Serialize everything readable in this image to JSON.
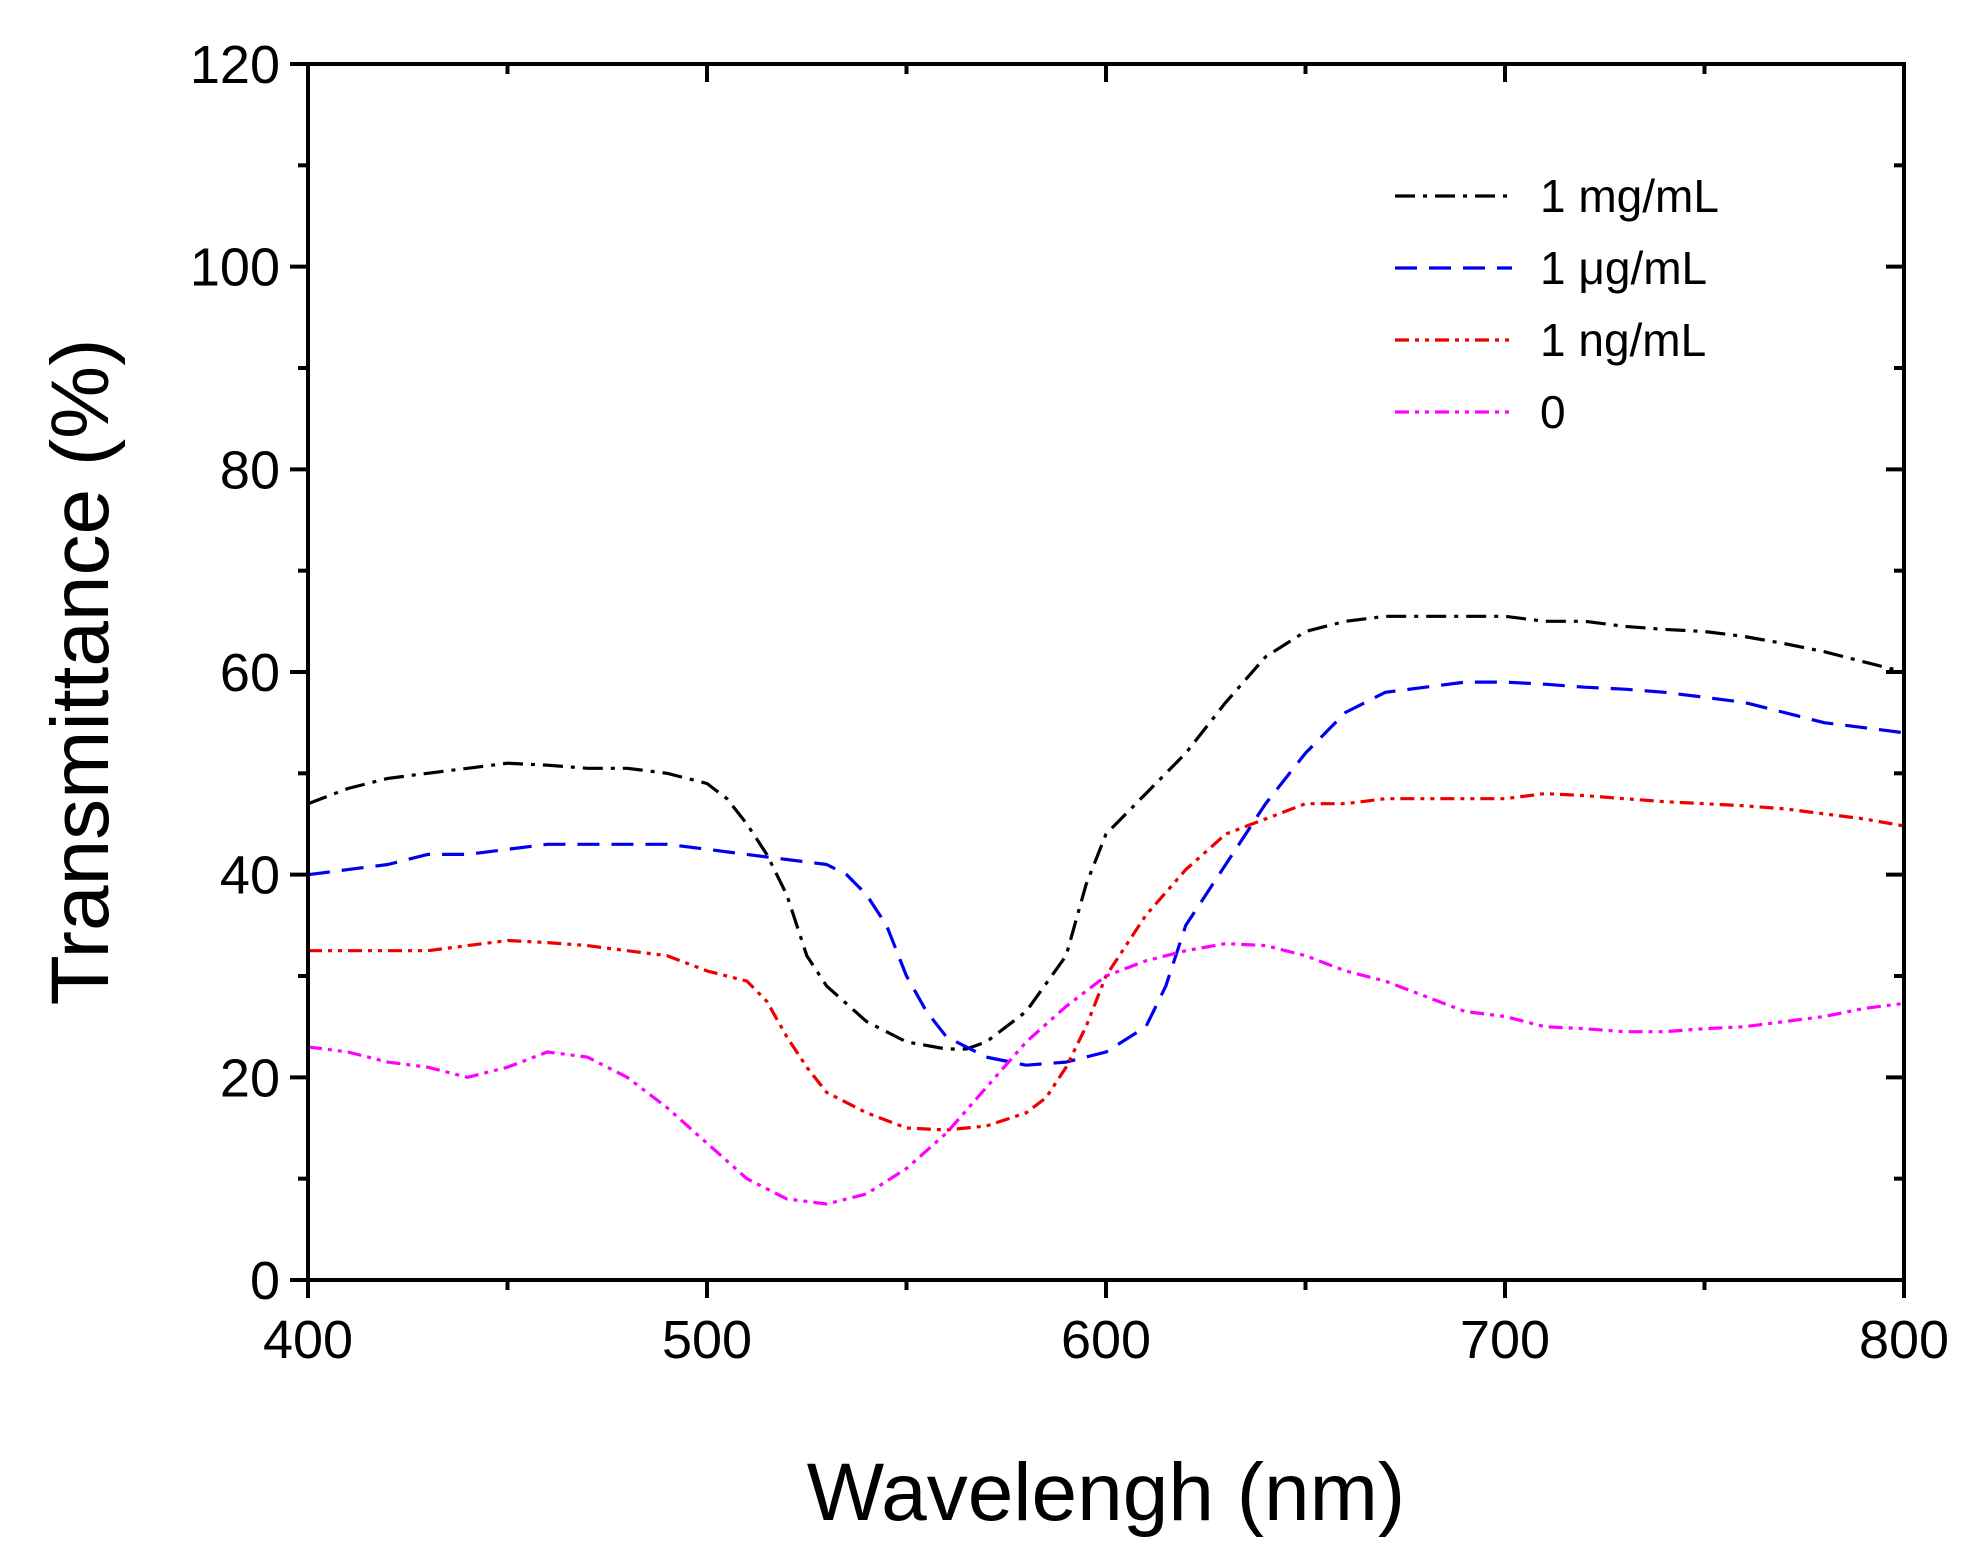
{
  "chart_data": {
    "type": "line",
    "title": "",
    "xlabel": "Wavelengh (nm)",
    "ylabel": "Transmittance (%)",
    "xlim": [
      400,
      800
    ],
    "ylim": [
      0,
      120
    ],
    "x_ticks": [
      400,
      500,
      600,
      700,
      800
    ],
    "y_ticks": [
      0,
      20,
      40,
      60,
      80,
      100,
      120
    ],
    "x_tick_labels": [
      "400",
      "500",
      "600",
      "700",
      "800"
    ],
    "y_tick_labels": [
      "0",
      "20",
      "40",
      "60",
      "80",
      "100",
      "120"
    ],
    "legend_position": "top-right",
    "grid": false,
    "series": [
      {
        "name": "1 mg/mL",
        "legend_label": "1 mg/mL",
        "color": "#000000",
        "dash": "dash-dot",
        "x": [
          400,
          410,
          420,
          430,
          440,
          450,
          460,
          470,
          480,
          490,
          500,
          505,
          510,
          515,
          520,
          525,
          530,
          540,
          550,
          560,
          565,
          570,
          580,
          590,
          595,
          600,
          605,
          610,
          620,
          630,
          640,
          650,
          660,
          670,
          680,
          690,
          700,
          710,
          720,
          730,
          740,
          750,
          760,
          770,
          780,
          790,
          800
        ],
        "y": [
          47,
          48.5,
          49.5,
          50,
          50.5,
          51,
          50.8,
          50.5,
          50.5,
          50,
          49,
          47.5,
          45,
          42,
          38,
          32,
          29,
          25.5,
          23.5,
          22.8,
          22.8,
          23.5,
          26.5,
          32,
          39,
          44,
          46,
          48,
          52,
          57,
          61.5,
          64,
          65,
          65.5,
          65.5,
          65.5,
          65.5,
          65,
          65,
          64.5,
          64.2,
          64,
          63.5,
          62.8,
          62,
          61,
          60
        ]
      },
      {
        "name": "1 µg/mL",
        "legend_label": "1 μg/mL",
        "color": "#0000ee",
        "dash": "dash",
        "x": [
          400,
          410,
          420,
          430,
          440,
          450,
          460,
          470,
          480,
          490,
          500,
          510,
          520,
          530,
          535,
          540,
          545,
          550,
          555,
          560,
          570,
          580,
          590,
          600,
          610,
          615,
          620,
          630,
          640,
          650,
          660,
          670,
          680,
          690,
          700,
          710,
          720,
          730,
          740,
          750,
          760,
          770,
          780,
          790,
          800
        ],
        "y": [
          40,
          40.5,
          41,
          42,
          42,
          42.5,
          43,
          43,
          43,
          43,
          42.5,
          42,
          41.5,
          41,
          40,
          38,
          35,
          30,
          26.5,
          24,
          22,
          21.2,
          21.5,
          22.5,
          25,
          29,
          35,
          41,
          47,
          52,
          56,
          58,
          58.5,
          59,
          59,
          58.8,
          58.5,
          58.3,
          58,
          57.5,
          57,
          56,
          55,
          54.5,
          54
        ]
      },
      {
        "name": "1 ng/mL",
        "legend_label": "1 ng/mL",
        "color": "#ee0000",
        "dash": "dash-dot-dot",
        "x": [
          400,
          410,
          420,
          430,
          440,
          450,
          460,
          470,
          480,
          490,
          500,
          510,
          515,
          520,
          525,
          530,
          540,
          550,
          560,
          565,
          570,
          580,
          585,
          590,
          595,
          600,
          610,
          620,
          630,
          640,
          650,
          660,
          670,
          680,
          690,
          700,
          710,
          720,
          730,
          740,
          750,
          760,
          770,
          780,
          790,
          800
        ],
        "y": [
          32.5,
          32.5,
          32.5,
          32.5,
          33,
          33.5,
          33.3,
          33,
          32.5,
          32,
          30.5,
          29.5,
          27.5,
          24,
          21,
          18.5,
          16.5,
          15,
          14.8,
          15,
          15.2,
          16.5,
          18,
          21,
          25,
          30,
          36,
          40.5,
          44,
          45.5,
          47,
          47,
          47.5,
          47.5,
          47.5,
          47.5,
          48,
          47.8,
          47.5,
          47.2,
          47,
          46.8,
          46.5,
          46,
          45.5,
          44.8
        ]
      },
      {
        "name": "0",
        "legend_label": "0",
        "color": "#ff00ff",
        "dash": "dash-dot-dot",
        "x": [
          400,
          410,
          420,
          430,
          440,
          450,
          460,
          470,
          480,
          490,
          500,
          510,
          520,
          530,
          540,
          550,
          560,
          570,
          580,
          590,
          600,
          610,
          620,
          630,
          640,
          650,
          660,
          670,
          680,
          690,
          700,
          710,
          720,
          730,
          740,
          750,
          760,
          770,
          780,
          790,
          800
        ],
        "y": [
          23,
          22.5,
          21.5,
          21,
          20,
          21,
          22.5,
          22,
          20,
          17,
          13.5,
          10,
          8,
          7.5,
          8.5,
          11,
          14.5,
          19,
          23.5,
          27,
          30,
          31.5,
          32.5,
          33.2,
          33,
          32,
          30.5,
          29.5,
          28,
          26.5,
          26,
          25,
          24.8,
          24.5,
          24.5,
          24.8,
          25,
          25.5,
          26,
          26.8,
          27.3
        ]
      }
    ]
  }
}
